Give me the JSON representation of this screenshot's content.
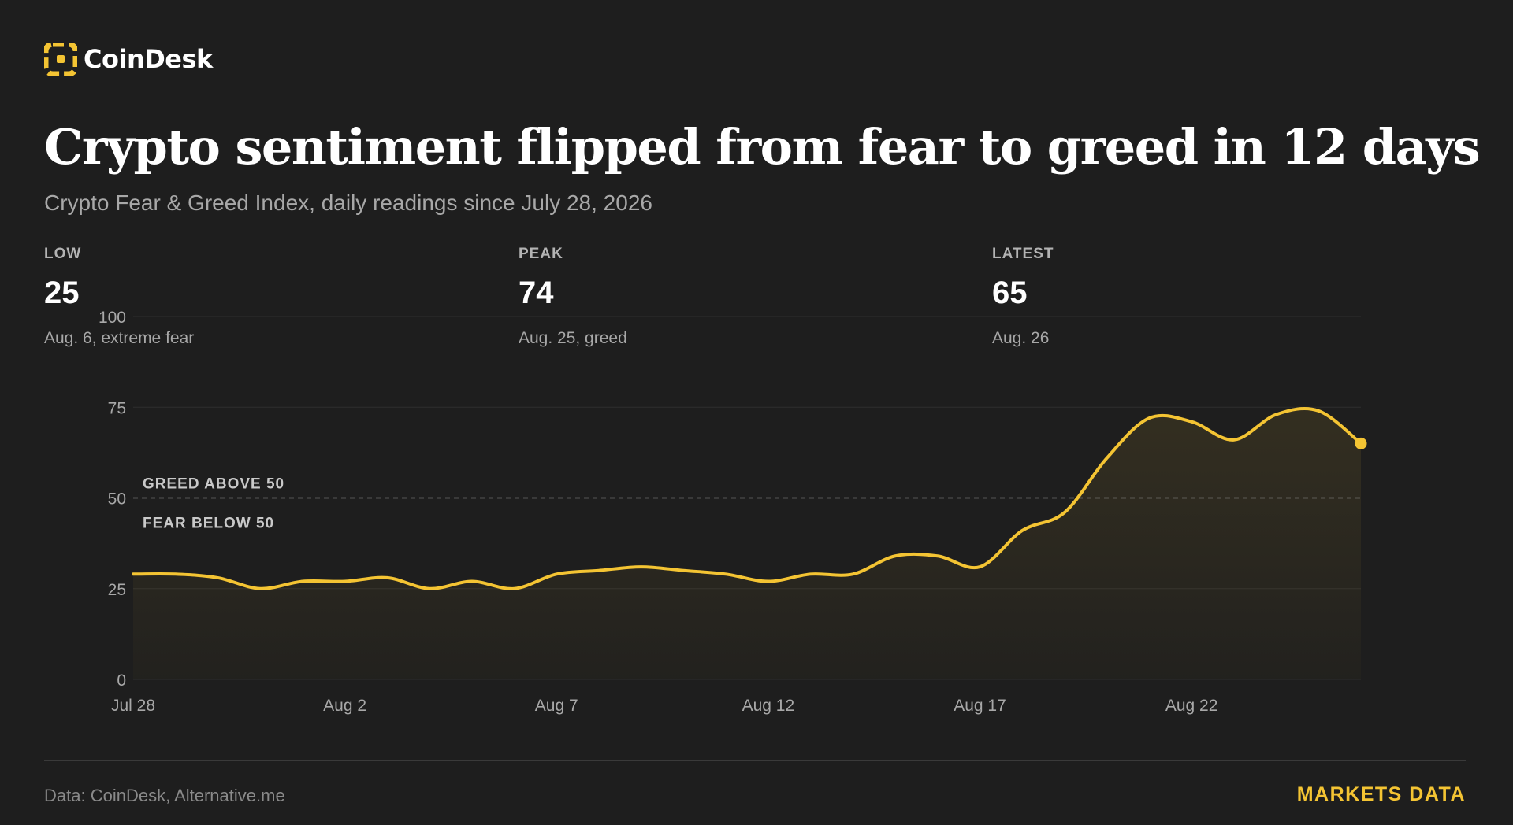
{
  "brand": {
    "name": "CoinDesk",
    "logo_icon": "coindesk-logo-icon",
    "accent": "#f4c433"
  },
  "headline": "Crypto sentiment flipped from fear to greed in 12 days",
  "subhead": "Crypto Fear & Greed Index, daily readings since July 28, 2026",
  "stats": [
    {
      "label": "LOW",
      "value": "25",
      "note": "Aug. 6, extreme fear"
    },
    {
      "label": "PEAK",
      "value": "74",
      "note": "Aug. 25, greed"
    },
    {
      "label": "LATEST",
      "value": "65",
      "note": "Aug. 26"
    }
  ],
  "chart_data": {
    "type": "area",
    "title": "",
    "xlabel": "",
    "ylabel": "",
    "ylim": [
      0,
      100
    ],
    "yticks": [
      0,
      25,
      50,
      75,
      100
    ],
    "xticks": [
      "Jul 28",
      "Aug 2",
      "Aug 7",
      "Aug 12",
      "Aug 17",
      "Aug 22"
    ],
    "x": [
      "Jul 28",
      "Jul 29",
      "Jul 30",
      "Jul 31",
      "Aug 1",
      "Aug 2",
      "Aug 3",
      "Aug 4",
      "Aug 5",
      "Aug 6",
      "Aug 7",
      "Aug 8",
      "Aug 9",
      "Aug 10",
      "Aug 11",
      "Aug 12",
      "Aug 13",
      "Aug 14",
      "Aug 15",
      "Aug 16",
      "Aug 17",
      "Aug 18",
      "Aug 19",
      "Aug 20",
      "Aug 21",
      "Aug 22",
      "Aug 23",
      "Aug 24",
      "Aug 25",
      "Aug 26"
    ],
    "series": [
      {
        "values": [
          29,
          29,
          28,
          25,
          27,
          27,
          28,
          25,
          27,
          25,
          29,
          30,
          31,
          30,
          29,
          27,
          29,
          29,
          34,
          34,
          31,
          41,
          46,
          61,
          72,
          71,
          66,
          73,
          74,
          65
        ]
      }
    ],
    "reference_line": {
      "value": 50,
      "label_above": "GREED ABOVE 50",
      "label_below": "FEAR BELOW 50"
    },
    "line_color": "#f4c433",
    "grid": true,
    "legend": "none"
  },
  "footer": {
    "source": "Data: CoinDesk, Alternative.me",
    "tag": "MARKETS DATA"
  }
}
